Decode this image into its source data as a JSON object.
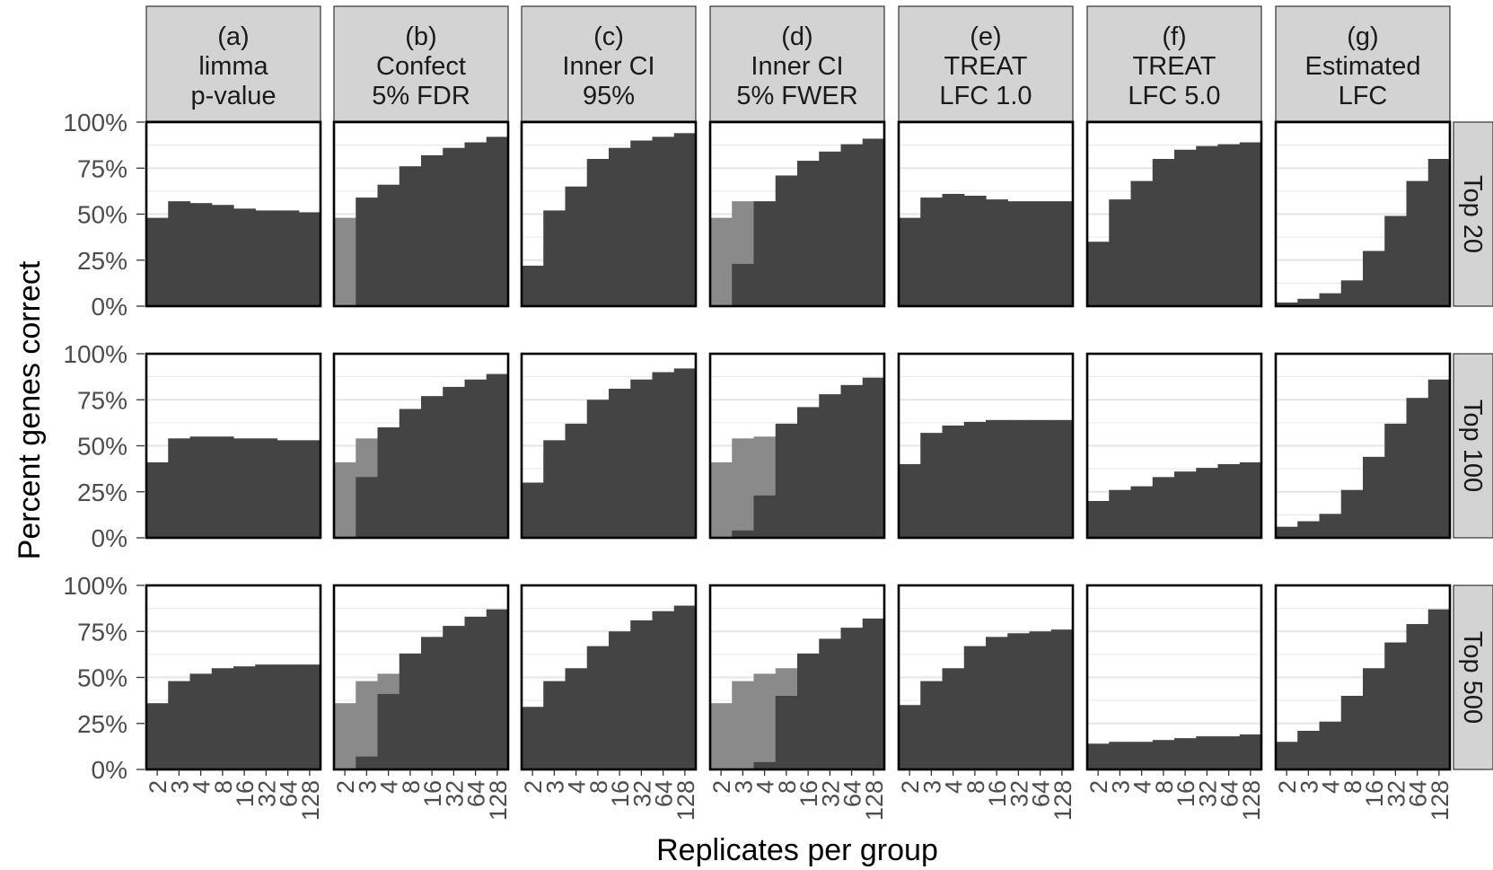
{
  "chart_data": {
    "type": "bar",
    "ylabel": "Percent genes correct",
    "xlabel": "Replicates per group",
    "y_ticks": [
      "0%",
      "25%",
      "50%",
      "75%",
      "100%"
    ],
    "ylim": [
      0,
      100
    ],
    "categories": [
      "2",
      "3",
      "4",
      "8",
      "16",
      "32",
      "64",
      "128"
    ],
    "grid": true,
    "colors": {
      "bar": "#444444",
      "shadow": "#8a8a8a",
      "strip": "#d3d3d3",
      "grid": "#e6e6e6"
    },
    "columns": [
      {
        "lines": [
          "(a)",
          "limma",
          "p-value"
        ]
      },
      {
        "lines": [
          "(b)",
          "Confect",
          "5% FDR"
        ]
      },
      {
        "lines": [
          "(c)",
          "Inner CI",
          "95%"
        ]
      },
      {
        "lines": [
          "(d)",
          "Inner CI",
          "5% FWER"
        ]
      },
      {
        "lines": [
          "(e)",
          "TREAT",
          "LFC 1.0"
        ]
      },
      {
        "lines": [
          "(f)",
          "TREAT",
          "LFC 5.0"
        ]
      },
      {
        "lines": [
          "(g)",
          "Estimated",
          "LFC"
        ]
      }
    ],
    "rows": [
      "Top 20",
      "Top 100",
      "Top 500"
    ],
    "panels": [
      [
        {
          "values": [
            48,
            57,
            56,
            55,
            53,
            52,
            52,
            51
          ],
          "shadow": []
        },
        {
          "values": [
            0,
            59,
            66,
            76,
            82,
            86,
            89,
            92
          ],
          "shadow": [
            48,
            0,
            0,
            0,
            0,
            0,
            0,
            0
          ]
        },
        {
          "values": [
            22,
            52,
            65,
            80,
            86,
            90,
            92,
            94
          ],
          "shadow": []
        },
        {
          "values": [
            0,
            23,
            57,
            71,
            79,
            84,
            88,
            91
          ],
          "shadow": [
            48,
            57,
            0,
            0,
            0,
            0,
            0,
            0
          ]
        },
        {
          "values": [
            48,
            59,
            61,
            60,
            58,
            57,
            57,
            57
          ],
          "shadow": []
        },
        {
          "values": [
            35,
            58,
            68,
            80,
            85,
            87,
            88,
            89
          ],
          "shadow": []
        },
        {
          "values": [
            2,
            4,
            7,
            14,
            30,
            49,
            68,
            80
          ],
          "shadow": []
        }
      ],
      [
        {
          "values": [
            41,
            54,
            55,
            55,
            54,
            54,
            53,
            53
          ],
          "shadow": []
        },
        {
          "values": [
            0,
            33,
            60,
            70,
            77,
            82,
            86,
            89
          ],
          "shadow": [
            41,
            54,
            0,
            0,
            0,
            0,
            0,
            0
          ]
        },
        {
          "values": [
            30,
            53,
            62,
            75,
            81,
            86,
            90,
            92
          ],
          "shadow": []
        },
        {
          "values": [
            0,
            4,
            23,
            62,
            71,
            78,
            83,
            87
          ],
          "shadow": [
            41,
            54,
            55,
            0,
            0,
            0,
            0,
            0
          ]
        },
        {
          "values": [
            40,
            57,
            61,
            63,
            64,
            64,
            64,
            64
          ],
          "shadow": []
        },
        {
          "values": [
            20,
            26,
            28,
            33,
            36,
            38,
            40,
            41
          ],
          "shadow": []
        },
        {
          "values": [
            6,
            9,
            13,
            26,
            44,
            62,
            76,
            86
          ],
          "shadow": []
        }
      ],
      [
        {
          "values": [
            36,
            48,
            52,
            55,
            56,
            57,
            57,
            57
          ],
          "shadow": []
        },
        {
          "values": [
            0,
            7,
            41,
            63,
            72,
            78,
            83,
            87
          ],
          "shadow": [
            36,
            48,
            52,
            0,
            0,
            0,
            0,
            0
          ]
        },
        {
          "values": [
            34,
            48,
            55,
            67,
            75,
            81,
            86,
            89
          ],
          "shadow": []
        },
        {
          "values": [
            0,
            0,
            4,
            40,
            63,
            71,
            77,
            82
          ],
          "shadow": [
            36,
            48,
            52,
            55,
            0,
            0,
            0,
            0
          ]
        },
        {
          "values": [
            35,
            48,
            55,
            67,
            72,
            74,
            75,
            76
          ],
          "shadow": []
        },
        {
          "values": [
            14,
            15,
            15,
            16,
            17,
            18,
            18,
            19
          ],
          "shadow": []
        },
        {
          "values": [
            15,
            21,
            26,
            40,
            55,
            69,
            79,
            87
          ],
          "shadow": []
        }
      ]
    ]
  }
}
